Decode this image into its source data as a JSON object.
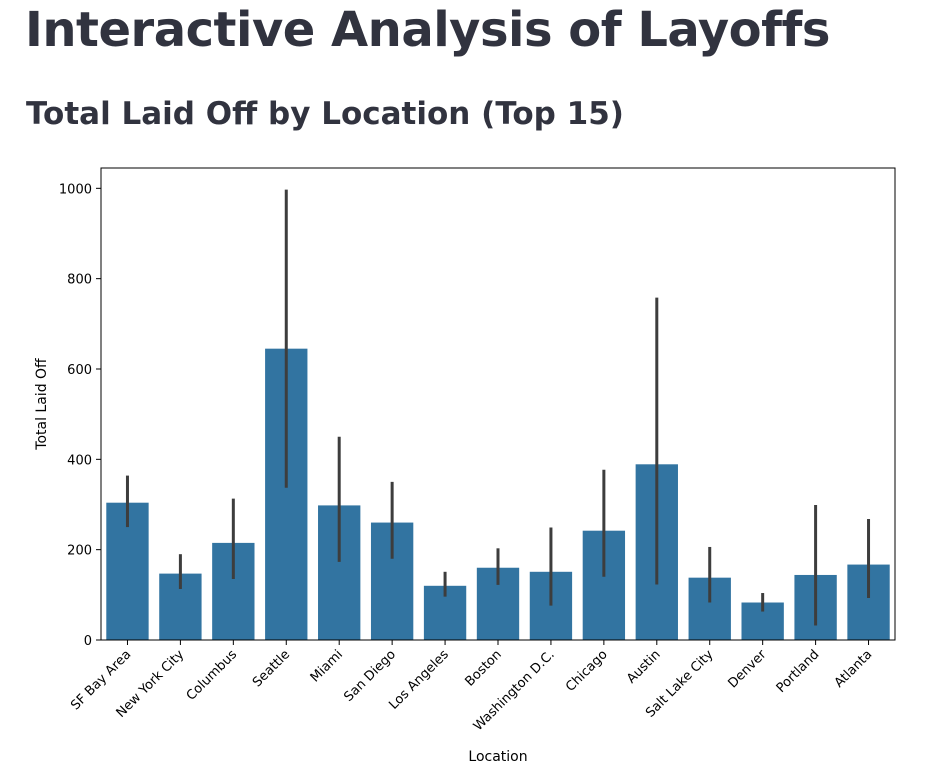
{
  "page": {
    "title": "Interactive Analysis of Layoffs",
    "chart_heading": "Total Laid Off by Location (Top 15)"
  },
  "colors": {
    "bar": "#3274a1",
    "error_bar": "#3d3d3d",
    "text": "#31333f"
  },
  "chart_data": {
    "type": "bar",
    "categories": [
      "SF Bay Area",
      "New York City",
      "Columbus",
      "Seattle",
      "Miami",
      "San Diego",
      "Los Angeles",
      "Boston",
      "Washington D.C.",
      "Chicago",
      "Austin",
      "Salt Lake City",
      "Denver",
      "Portland",
      "Atlanta"
    ],
    "values": [
      304,
      147,
      215,
      645,
      298,
      260,
      120,
      160,
      151,
      242,
      389,
      138,
      83,
      144,
      167
    ],
    "error_low": [
      250,
      113,
      135,
      337,
      173,
      180,
      96,
      122,
      76,
      140,
      123,
      83,
      63,
      32,
      93
    ],
    "error_high": [
      364,
      190,
      313,
      997,
      450,
      350,
      151,
      203,
      249,
      377,
      758,
      206,
      104,
      299,
      268
    ],
    "xlabel": "Location",
    "ylabel": "Total Laid Off",
    "ylim": [
      0,
      1045
    ],
    "yticks": [
      0,
      200,
      400,
      600,
      800,
      1000
    ],
    "grid": false
  }
}
